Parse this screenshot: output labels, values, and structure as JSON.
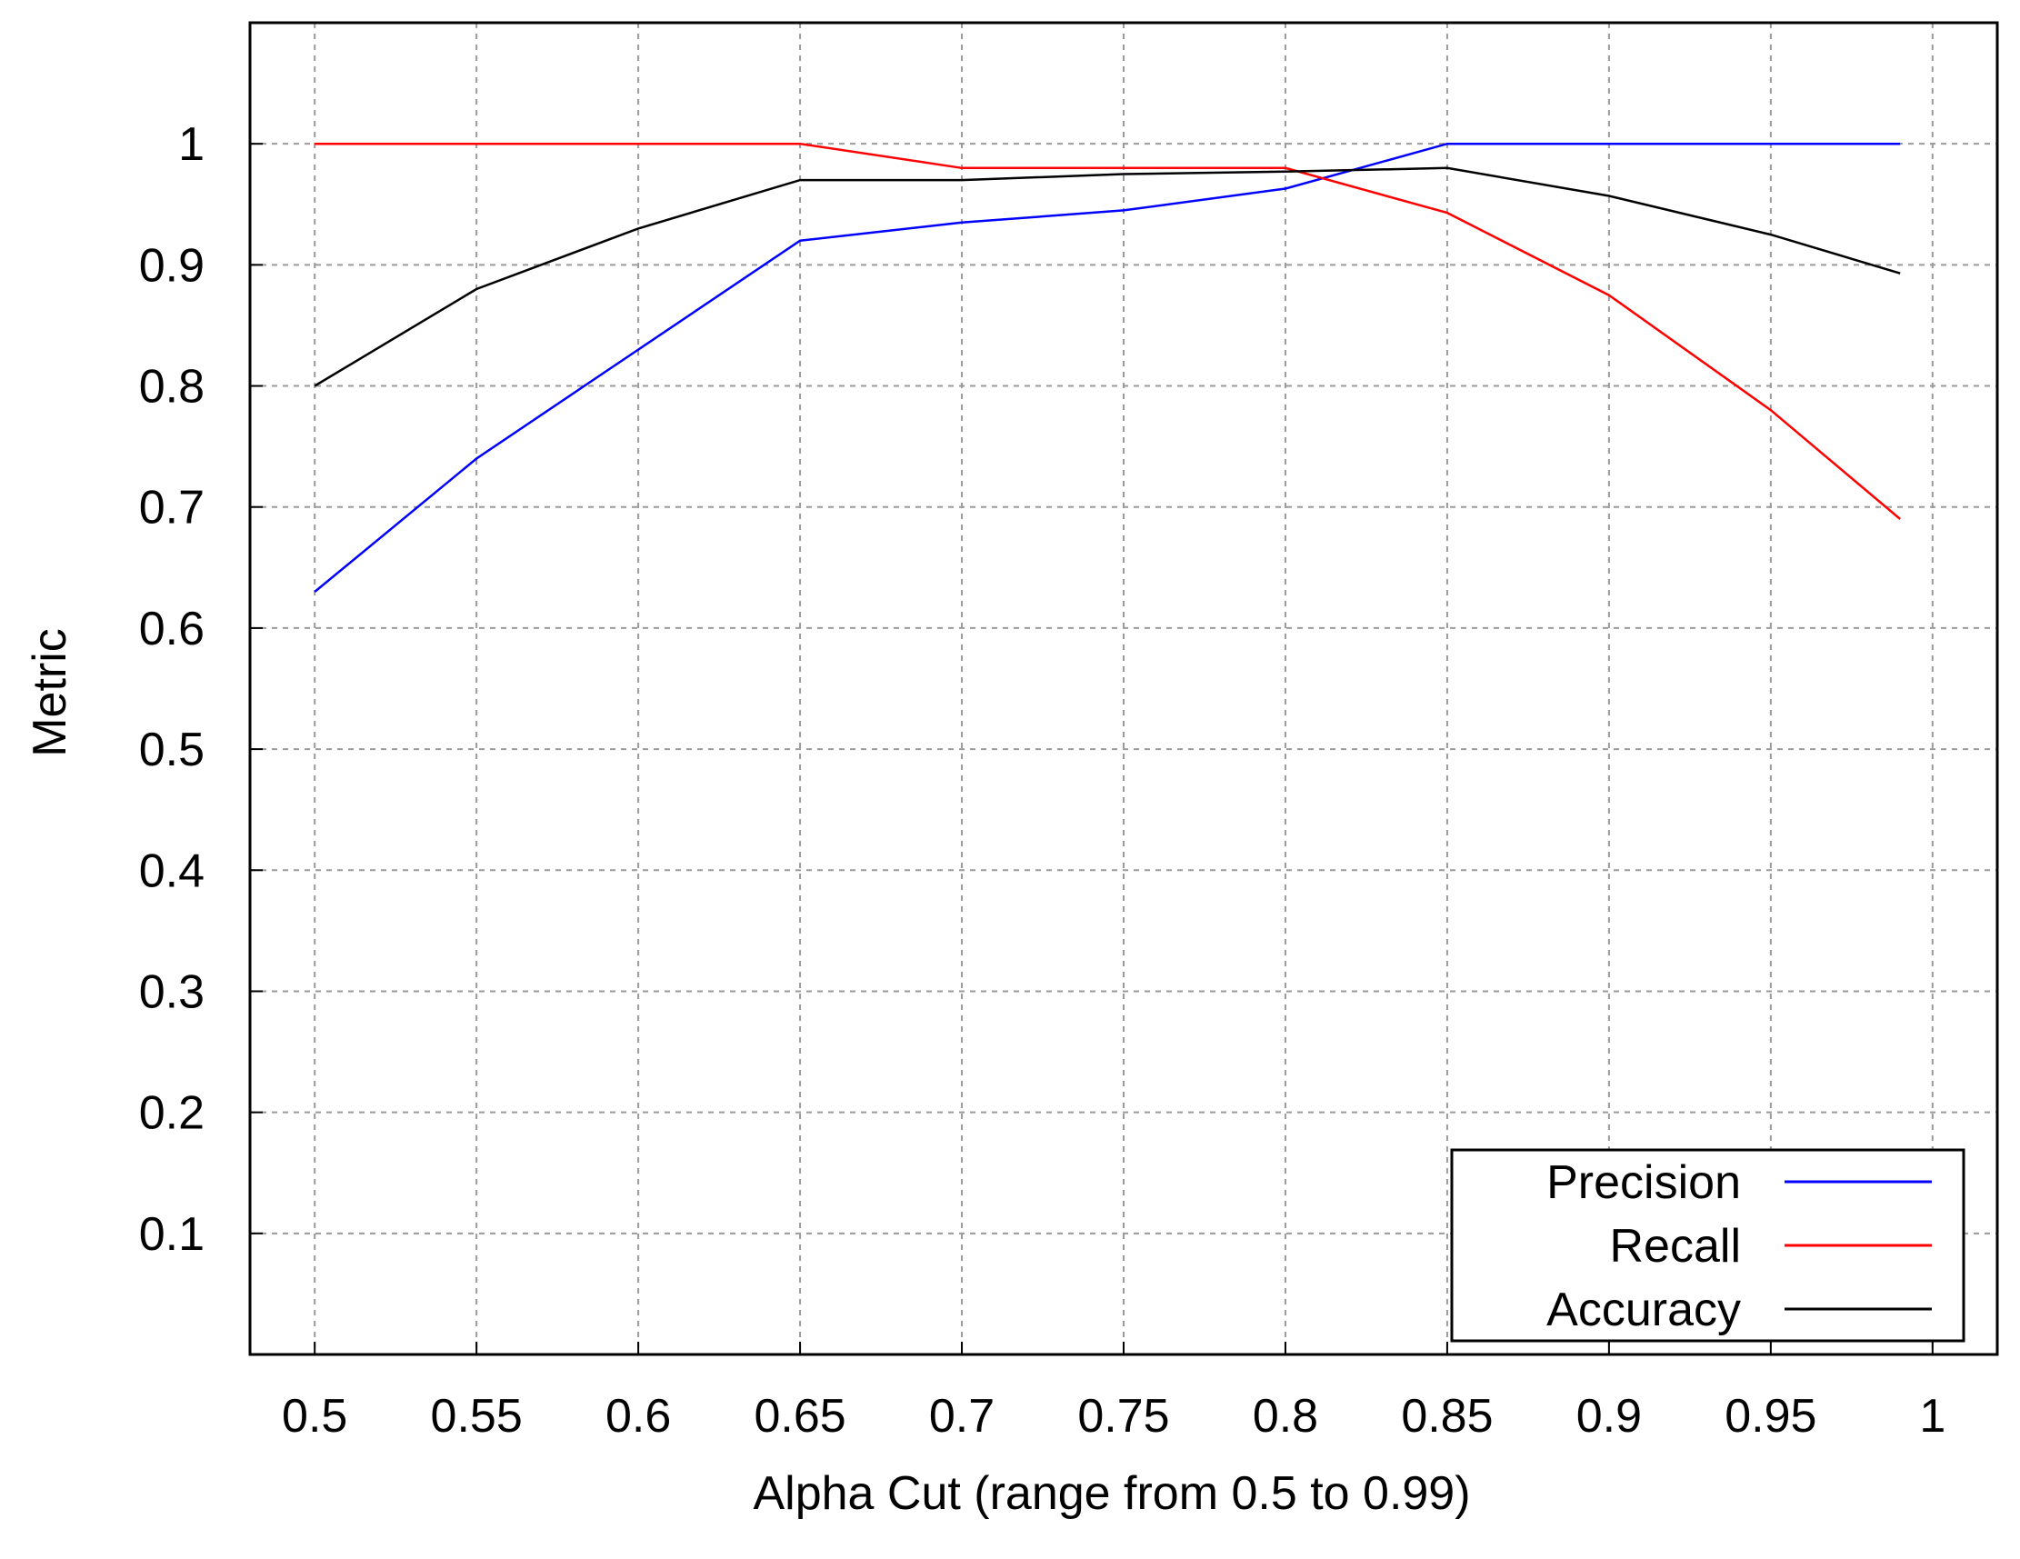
{
  "chart_data": {
    "type": "line",
    "title": "",
    "xlabel": "Alpha Cut (range from 0.5 to 0.99)",
    "ylabel": "Metric",
    "xlim": [
      0.48,
      1.02
    ],
    "ylim": [
      0,
      1.1
    ],
    "x_ticks": [
      "0.5",
      "0.55",
      "0.6",
      "0.65",
      "0.7",
      "0.75",
      "0.8",
      "0.85",
      "0.9",
      "0.95",
      "1"
    ],
    "y_ticks": [
      "0.1",
      "0.2",
      "0.3",
      "0.4",
      "0.5",
      "0.6",
      "0.7",
      "0.8",
      "0.9",
      "1"
    ],
    "grid": true,
    "legend_position": "bottom-right",
    "x": [
      0.5,
      0.55,
      0.6,
      0.65,
      0.7,
      0.75,
      0.8,
      0.85,
      0.9,
      0.95,
      0.99
    ],
    "series": [
      {
        "name": "Precision",
        "color": "#0000ff",
        "values": [
          0.63,
          0.74,
          0.83,
          0.92,
          0.935,
          0.945,
          0.963,
          1.0,
          1.0,
          1.0,
          1.0
        ]
      },
      {
        "name": "Recall",
        "color": "#ff0000",
        "values": [
          1.0,
          1.0,
          1.0,
          1.0,
          0.98,
          0.98,
          0.98,
          0.943,
          0.875,
          0.78,
          0.69
        ]
      },
      {
        "name": "Accuracy",
        "color": "#000000",
        "values": [
          0.8,
          0.88,
          0.93,
          0.97,
          0.97,
          0.975,
          0.977,
          0.98,
          0.957,
          0.925,
          0.893
        ]
      }
    ]
  }
}
